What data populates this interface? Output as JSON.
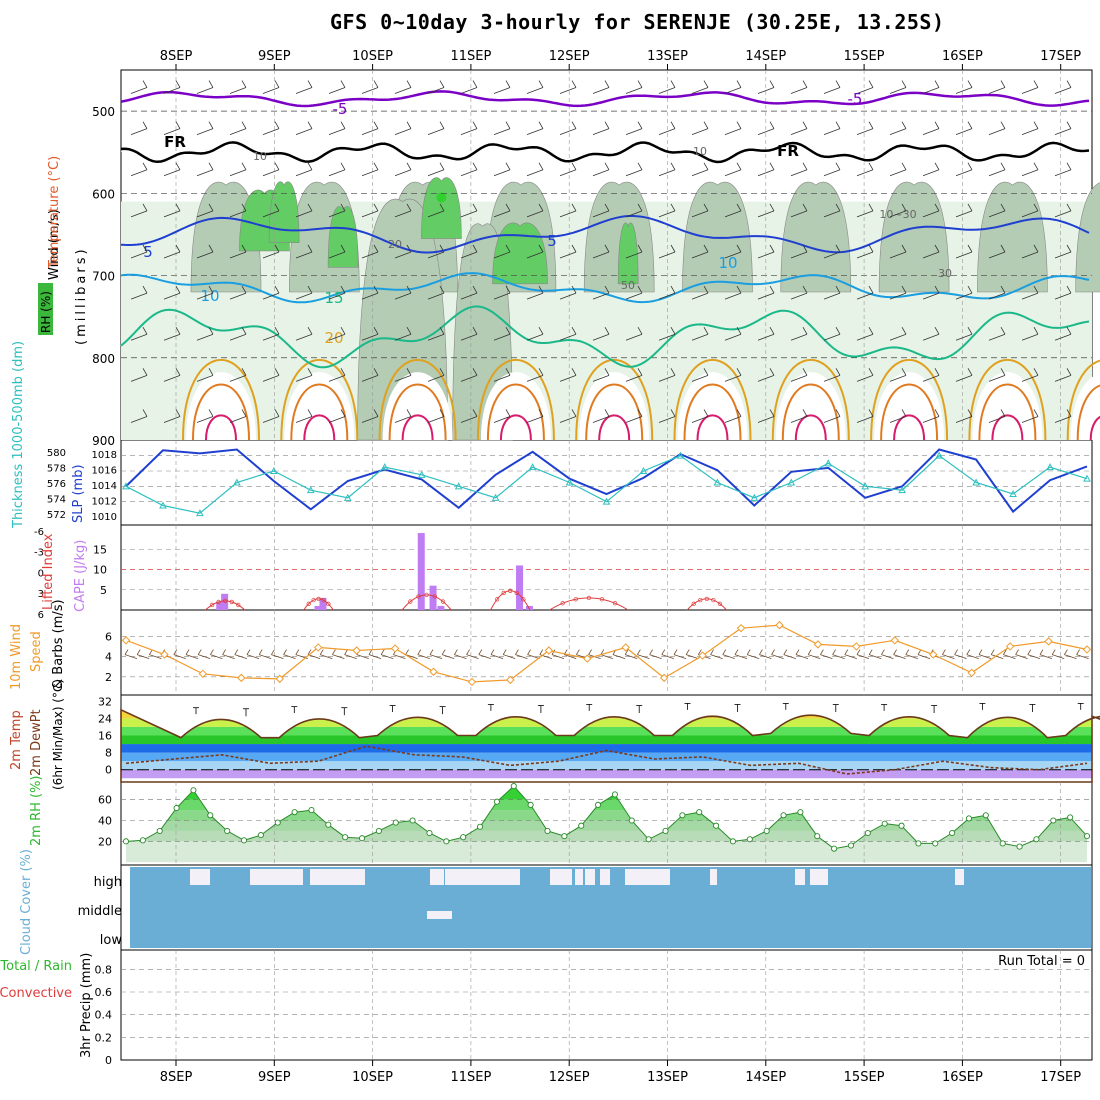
{
  "title": "GFS 0~10day 3-hourly for SERENJE (30.25E, 13.25S)",
  "colors": {
    "temp_line": "#7b00c6",
    "freeze_line": "#000000",
    "rh_light": "#e6f3e6",
    "rh_mid": "#b4cbb4",
    "rh_green": "#64cc64",
    "rh_bright": "#2fd12f",
    "slp": "#1f3fd0",
    "thickness": "#2ebfbf",
    "cape": "#c07cf3",
    "lifted_index": "#e03c3c",
    "wind10": "#f09a2a",
    "barb": "#6b4a2a",
    "rh2m": "#2eb82e",
    "cloud": "#6aaed6",
    "cloud_clear": "#f4f0f7"
  },
  "chart_data": {
    "type": "meteogram",
    "x_ticks": [
      "8SEP",
      "9SEP",
      "10SEP",
      "11SEP",
      "12SEP",
      "13SEP",
      "14SEP",
      "15SEP",
      "16SEP",
      "17SEP"
    ],
    "panels": [
      {
        "id": "upper",
        "ylabel": "Wind (m/s)",
        "ylabel_temp": "Temperature (°C)",
        "ylabel_rh": "RH (%)",
        "ylabel_mb": "(millibars)",
        "y_ticks": [
          "500",
          "600",
          "700",
          "800",
          "900"
        ],
        "ylim": [
          450,
          900
        ],
        "isotherm_labels": [
          "-5",
          "-5",
          "FR",
          "FR",
          "5",
          "5",
          "10",
          "10",
          "15",
          "20",
          "10",
          "10",
          "20",
          "50",
          "10~30",
          "30"
        ]
      },
      {
        "id": "slp",
        "ylabel_left": "Thickness 1000-500mb (dm)",
        "ylabel_right": "SLP (mb)",
        "y_ticks_thickness": [
          "580",
          "578",
          "576",
          "574",
          "572"
        ],
        "y_ticks_slp": [
          "1018",
          "1016",
          "1014",
          "1012",
          "1010"
        ],
        "slp": [
          1014,
          1018.7,
          1018.3,
          1018.8,
          1014.7,
          1011.0,
          1014.7,
          1016.2,
          1014.9,
          1011.2,
          1015.5,
          1018.5,
          1015.0,
          1013.0,
          1015.1,
          1018.2,
          1016.1,
          1011.5,
          1015.9,
          1016.4,
          1012.5,
          1014.0,
          1018.8,
          1017.5,
          1010.7,
          1014.8,
          1016.6
        ],
        "thickness": [
          576,
          573.5,
          572.5,
          576.5,
          578,
          575.5,
          574.5,
          578.5,
          577.5,
          576,
          574.5,
          578.5,
          576.5,
          574,
          578,
          580,
          576.5,
          574.5,
          576.5,
          579,
          576,
          575.5,
          580,
          576.5,
          575,
          578.5,
          577
        ]
      },
      {
        "id": "cape",
        "ylabel_left": "Lifted Index",
        "ylabel_right": "CAPE (J/kg)",
        "y_ticks_li": [
          "-6",
          "-3",
          "0",
          "3",
          "6"
        ],
        "y_ticks_cape": [
          "15",
          "10",
          "5"
        ],
        "cape_bars": [
          {
            "day": 8.45,
            "value": 2
          },
          {
            "day": 8.5,
            "value": 4
          },
          {
            "day": 9.45,
            "value": 1
          },
          {
            "day": 9.5,
            "value": 3
          },
          {
            "day": 10.5,
            "value": 19
          },
          {
            "day": 10.62,
            "value": 6
          },
          {
            "day": 10.7,
            "value": 1
          },
          {
            "day": 11.5,
            "value": 11
          },
          {
            "day": 11.6,
            "value": 1
          }
        ]
      },
      {
        "id": "wind",
        "ylabel_left": "10m Wind",
        "ylabel_mid": "Speed",
        "ylabel_right": "& Barbs (m/s)",
        "y_ticks": [
          "6",
          "4",
          "2"
        ],
        "speed": [
          5.6,
          4.2,
          2.3,
          1.9,
          1.8,
          4.9,
          4.6,
          4.8,
          2.5,
          1.5,
          1.7,
          4.6,
          3.8,
          4.9,
          1.9,
          4.1,
          6.8,
          7.1,
          5.2,
          5.0,
          5.6,
          4.2,
          2.4,
          5.0,
          5.5,
          4.7
        ]
      },
      {
        "id": "temp",
        "ylabel_left": "2m Temp",
        "ylabel_mid": "2m DewPt",
        "ylabel_right": "(6hr Min/Max) (°C)",
        "y_ticks": [
          "32",
          "24",
          "16",
          "8",
          "0"
        ],
        "temp_max": [
          28,
          28.5,
          29,
          29.5,
          29.5,
          30,
          30,
          29.5,
          30,
          30
        ],
        "temp_min": [
          15,
          15,
          16,
          16,
          16,
          16,
          17,
          16,
          15,
          16
        ],
        "dewpt": [
          3,
          5,
          7,
          3,
          4,
          11,
          7,
          6,
          2,
          4,
          9,
          5,
          6,
          2,
          3,
          -2,
          0,
          4,
          1,
          0,
          3
        ]
      },
      {
        "id": "rh2m",
        "ylabel": "2m RH (%)",
        "y_ticks": [
          "60",
          "40",
          "20"
        ],
        "rh": [
          20,
          21,
          30,
          52,
          69,
          45,
          30,
          21,
          26,
          38,
          48,
          50,
          36,
          24,
          23,
          30,
          38,
          40,
          28,
          20,
          24,
          34,
          58,
          73,
          55,
          30,
          25,
          35,
          55,
          65,
          40,
          22,
          30,
          45,
          48,
          35,
          20,
          22,
          30,
          45,
          48,
          25,
          13,
          16,
          28,
          37,
          35,
          18,
          18,
          28,
          42,
          45,
          18,
          15,
          22,
          40,
          43,
          25
        ]
      },
      {
        "id": "cloud",
        "ylabel": "Cloud Cover (%)",
        "y_ticks": [
          "high",
          "middle",
          "low"
        ]
      },
      {
        "id": "precip",
        "ylabel_left": "Total / Rain",
        "ylabel_mid": "Convective",
        "ylabel_right": "3hr Precip (mm)",
        "y_ticks": [
          "0.8",
          "0.6",
          "0.4",
          "0.2",
          "0"
        ],
        "run_total": "Run Total = 0"
      }
    ]
  }
}
